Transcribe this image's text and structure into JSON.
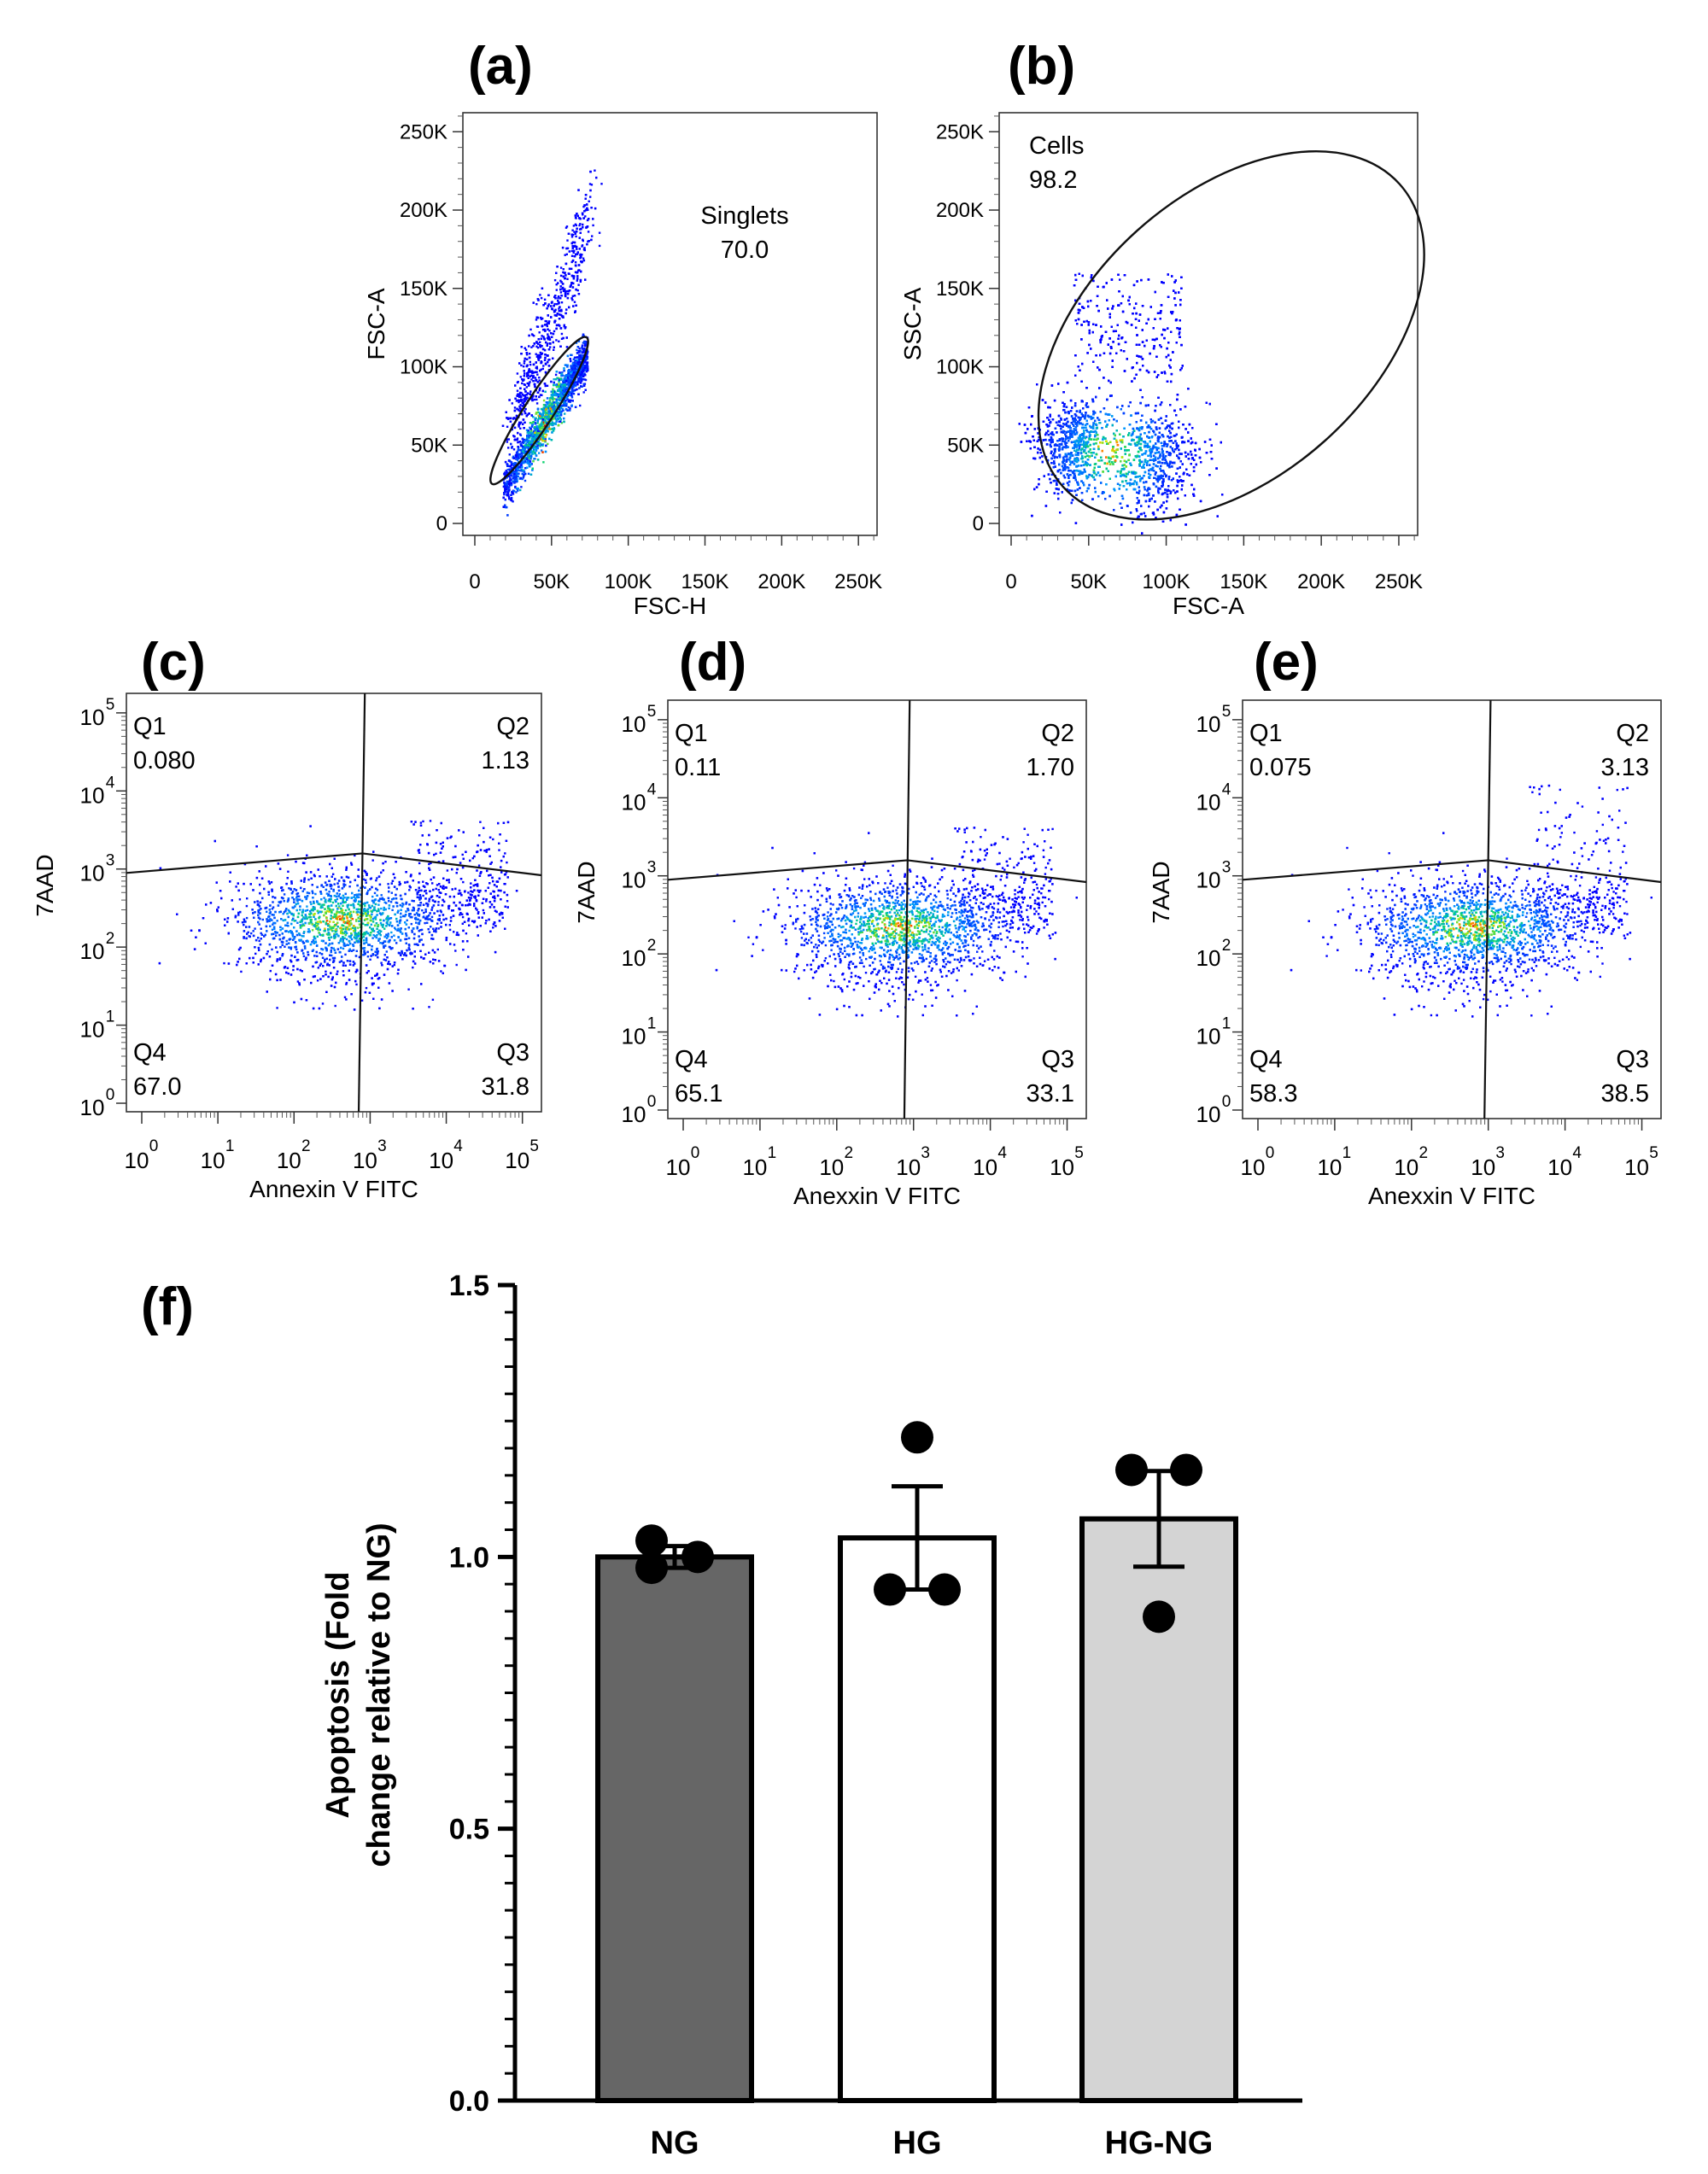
{
  "panels": [
    "(a)",
    "(b)",
    "(c)",
    "(d)",
    "(e)",
    "(f)"
  ],
  "chart_data": [
    {
      "id": "a",
      "type": "scatter",
      "title": "",
      "xlabel": "FSC-H",
      "ylabel": "FSC-A",
      "x_ticks": [
        "0",
        "50K",
        "100K",
        "150K",
        "200K",
        "250K"
      ],
      "y_ticks": [
        "0",
        "50K",
        "100K",
        "150K",
        "200K",
        "250K"
      ],
      "xlim": [
        0,
        262144
      ],
      "ylim": [
        0,
        262144
      ],
      "gate": {
        "label": "Singlets",
        "value": "70.0"
      }
    },
    {
      "id": "b",
      "type": "scatter",
      "title": "",
      "xlabel": "FSC-A",
      "ylabel": "SSC-A",
      "x_ticks": [
        "0",
        "50K",
        "100K",
        "150K",
        "200K",
        "250K"
      ],
      "y_ticks": [
        "0",
        "50K",
        "100K",
        "150K",
        "200K",
        "250K"
      ],
      "xlim": [
        0,
        262144
      ],
      "ylim": [
        0,
        262144
      ],
      "gate": {
        "label": "Cells",
        "value": "98.2"
      }
    },
    {
      "id": "c",
      "type": "scatter",
      "title": "",
      "xlabel": "Annexin V FITC",
      "ylabel": "7AAD",
      "scale": "log",
      "x_ticks": [
        "0",
        "1",
        "2",
        "3",
        "4",
        "5"
      ],
      "y_ticks": [
        "0",
        "1",
        "2",
        "3",
        "4",
        "5"
      ],
      "quadrants": [
        {
          "name": "Q1",
          "value": "0.080"
        },
        {
          "name": "Q2",
          "value": "1.13"
        },
        {
          "name": "Q3",
          "value": "31.8"
        },
        {
          "name": "Q4",
          "value": "67.0"
        }
      ]
    },
    {
      "id": "d",
      "type": "scatter",
      "title": "",
      "xlabel": "Anexxin V FITC",
      "ylabel": "7AAD",
      "scale": "log",
      "x_ticks": [
        "0",
        "1",
        "2",
        "3",
        "4",
        "5"
      ],
      "y_ticks": [
        "0",
        "1",
        "2",
        "3",
        "4",
        "5"
      ],
      "quadrants": [
        {
          "name": "Q1",
          "value": "0.11"
        },
        {
          "name": "Q2",
          "value": "1.70"
        },
        {
          "name": "Q3",
          "value": "33.1"
        },
        {
          "name": "Q4",
          "value": "65.1"
        }
      ]
    },
    {
      "id": "e",
      "type": "scatter",
      "title": "",
      "xlabel": "Anexxin V FITC",
      "ylabel": "7AAD",
      "scale": "log",
      "x_ticks": [
        "0",
        "1",
        "2",
        "3",
        "4",
        "5"
      ],
      "y_ticks": [
        "0",
        "1",
        "2",
        "3",
        "4",
        "5"
      ],
      "quadrants": [
        {
          "name": "Q1",
          "value": "0.075"
        },
        {
          "name": "Q2",
          "value": "3.13"
        },
        {
          "name": "Q3",
          "value": "38.5"
        },
        {
          "name": "Q4",
          "value": "58.3"
        }
      ]
    },
    {
      "id": "f",
      "type": "bar",
      "title": "",
      "xlabel": "",
      "ylabel_lines": [
        "Apoptosis (Fold",
        "change relative to NG)"
      ],
      "categories": [
        "NG",
        "HG",
        "HG-NG"
      ],
      "values": [
        1.0,
        1.035,
        1.07
      ],
      "sem": [
        0.02,
        0.095,
        0.088
      ],
      "points": [
        [
          1.03,
          0.98,
          1.0
        ],
        [
          1.22,
          0.94,
          0.94
        ],
        [
          1.16,
          1.16,
          0.89
        ]
      ],
      "bar_colors": [
        "#666666",
        "#ffffff",
        "#d4d4d4"
      ],
      "ylim": [
        0,
        1.5
      ],
      "y_ticks": [
        "0.0",
        "0.5",
        "1.0",
        "1.5"
      ]
    }
  ]
}
